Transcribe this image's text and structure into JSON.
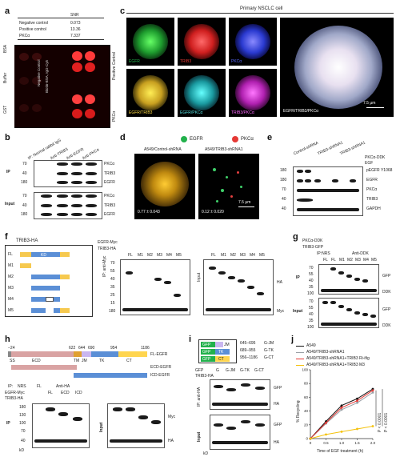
{
  "colors": {
    "egfr": "#22b14c",
    "trib3": "#e53935",
    "pkca": "#3f51ff",
    "background": "#000000",
    "ecd": "#d9a3a3",
    "tm": "#e0a030",
    "tk": "#5b8fd6",
    "ct": "#ffd54f",
    "cell_dot": "#ffcc33"
  },
  "panel_a": {
    "letter": "a",
    "table_header": "SNR",
    "rows": [
      {
        "label": "Negative control",
        "snr": "0.073"
      },
      {
        "label": "Positive control",
        "snr": "13.36"
      },
      {
        "label": "PKCα",
        "snr": "7.337"
      }
    ],
    "side_labels": [
      "BSA",
      "Buffer",
      "GST"
    ],
    "group_labels": [
      "Negative Control",
      "Biotin-BSA, IgG-Cy5",
      "Positive Control",
      "PKCα"
    ]
  },
  "panel_b": {
    "letter": "b",
    "col_headers": [
      "IP: Normal rabbit IgG",
      "Anti-TRIB3",
      "Anti-EGFR",
      "Anti-PKCα"
    ],
    "ip_label": "IP",
    "input_label": "Input",
    "markers": [
      "70",
      "40",
      "180",
      "70",
      "40",
      "180"
    ],
    "rows": [
      "PKCα",
      "TRIB3",
      "EGFR",
      "PKCα",
      "TRIB3",
      "EGFR"
    ]
  },
  "panel_c": {
    "letter": "c",
    "title": "Primary NSCLC cell",
    "top_labels": [
      "EGFR",
      "TRIB3",
      "PKCα"
    ],
    "bottom_labels": [
      "EGFR/TRIB3",
      "EGFR/PKCα",
      "TRIB3/PKCα",
      "EGFR/TRIB3/PKCα"
    ],
    "scale": "7.5 μm"
  },
  "panel_d": {
    "letter": "d",
    "legend": [
      "EGFR",
      "PKCα"
    ],
    "titles": [
      "A549/Control-shRNA",
      "A549/TRIB3-shRNA1"
    ],
    "values": [
      "0.77 ± 0.043",
      "0.12 ± 0.020"
    ],
    "scale": "7.5 μm"
  },
  "panel_e": {
    "letter": "e",
    "col_headers": [
      "Control-shRNA",
      "TRIB3-shRNA1",
      "TRIB3-shRNA1"
    ],
    "treatments": [
      "PKCα-DDK",
      "EGF"
    ],
    "markers": [
      "180",
      "180",
      "70",
      "40",
      "40"
    ],
    "rows": [
      "pEGFR Y1068",
      "EGFR",
      "PKCα",
      "TRIB3",
      "GAPDH"
    ]
  },
  "panel_f": {
    "letter": "f",
    "construct_title": "TRIB3-HA",
    "constructs": [
      "FL",
      "M1",
      "M2",
      "M3",
      "M4",
      "M5"
    ],
    "numbers": [
      "1",
      "71",
      "315",
      "359",
      "72",
      "315",
      "359",
      "1",
      "71",
      "315",
      "72",
      "315",
      "72",
      "179",
      "216",
      "358",
      "72",
      "179",
      "216",
      "359"
    ],
    "kd": "KD",
    "treat_rows": [
      "EGFR-Myc",
      "TRIB3-HA"
    ],
    "lanes": [
      "FL",
      "M1",
      "M2",
      "M3",
      "M4",
      "M5"
    ],
    "ip_label": "IP: anti-Myc",
    "input_label": "Input",
    "markers": [
      "70",
      "55",
      "40",
      "35",
      "25",
      "15",
      "180",
      "70",
      "55",
      "40",
      "35",
      "25",
      "15",
      "180"
    ],
    "row_labels": [
      "HA",
      "Myc"
    ]
  },
  "panel_g": {
    "letter": "g",
    "treat_rows": [
      "PKCα-DDK",
      "TRIB3-GFP"
    ],
    "lanes": [
      "FL",
      "FL",
      "M1",
      "M2",
      "M3",
      "M4",
      "M5"
    ],
    "ip_groups": [
      "IP:NRS",
      "Anti-DDK"
    ],
    "ip_label": "IP",
    "input_label": "Input",
    "markers": [
      "70",
      "55",
      "40",
      "35",
      "100",
      "70",
      "55",
      "40",
      "35",
      "100"
    ],
    "row_labels": [
      "GFP",
      "DDK",
      "GFP",
      "DDK"
    ]
  },
  "panel_h": {
    "letter": "h",
    "positions": [
      "−24",
      "622",
      "644",
      "690",
      "954",
      "1186"
    ],
    "domains": [
      "SS",
      "ECD",
      "TM",
      "JM",
      "TK",
      "CT"
    ],
    "constructs": [
      "FL-EGFR",
      "ECD-EGFR",
      "ICD-EGFR"
    ],
    "col_headers": [
      "IP:",
      "NRS",
      "Anti-HA"
    ],
    "treat_rows": [
      "EGFR-Myc",
      "TRIB3-HA"
    ],
    "lanes": [
      "FL",
      "FL",
      "ECD",
      "ICD"
    ],
    "ip_label": "IP",
    "input_label": "Input",
    "markers": [
      "180",
      "130",
      "100",
      "70",
      "40",
      "180",
      "130",
      "100",
      "70",
      "40"
    ],
    "row_labels": [
      "Myc",
      "HA"
    ],
    "kd": "kD"
  },
  "panel_i": {
    "letter": "i",
    "constructs": [
      {
        "label": "GFP",
        "region": "JM",
        "range": "645–695",
        "name": "G-JM"
      },
      {
        "label": "GFP",
        "region": "TK",
        "range": "689–955",
        "name": "G-TK"
      },
      {
        "label": "GFP",
        "region": "CT",
        "range": "956–1186",
        "name": "G-CT"
      }
    ],
    "treat_rows": [
      "GFP",
      "TRIB3-HA"
    ],
    "lanes": [
      "G",
      "G-JM",
      "G-TK",
      "G-CT"
    ],
    "ip_label": "IP: anti-HA",
    "input_label": "Input",
    "row_labels": [
      "GFP",
      "HA",
      "GFP",
      "HA"
    ],
    "kd": "kD"
  },
  "panel_j": {
    "letter": "j",
    "legend": [
      "A549",
      "A549/TRIB3-shRNA1",
      "A549/TRIB3-shRNA1+TRIB3 Ri-ifig",
      "A549/TRIB3-shRNA1+TRIB3 M3"
    ],
    "ylabel": "% Recycling",
    "xlabel": "Time of EGF treatment (h)",
    "p_values": [
      "P < 0.0001",
      "P < 0.0001"
    ]
  },
  "chart_data": {
    "type": "line",
    "title": "",
    "xlabel": "Time of EGF treatment (h)",
    "ylabel": "% Recycling",
    "x": [
      0,
      0.5,
      1.0,
      1.5,
      2.0
    ],
    "xlim": [
      0,
      2.0
    ],
    "ylim": [
      0,
      100
    ],
    "xticks": [
      "0",
      "0.5",
      "1.0",
      "1.5",
      "2.0"
    ],
    "yticks": [
      "0",
      "20",
      "40",
      "60",
      "80",
      "100"
    ],
    "series": [
      {
        "name": "A549",
        "color": "#111111",
        "values": [
          0,
          25,
          48,
          58,
          72
        ]
      },
      {
        "name": "A549/TRIB3-shRNA1",
        "color": "#9aa0a6",
        "values": [
          0,
          22,
          42,
          52,
          67
        ]
      },
      {
        "name": "A549/TRIB3-shRNA1+TRIB3 Ri-ifig",
        "color": "#e53935",
        "values": [
          0,
          23,
          45,
          55,
          70
        ]
      },
      {
        "name": "A549/TRIB3-shRNA1+TRIB3 M3",
        "color": "#f4c20d",
        "values": [
          0,
          6,
          10,
          14,
          18
        ]
      }
    ]
  }
}
